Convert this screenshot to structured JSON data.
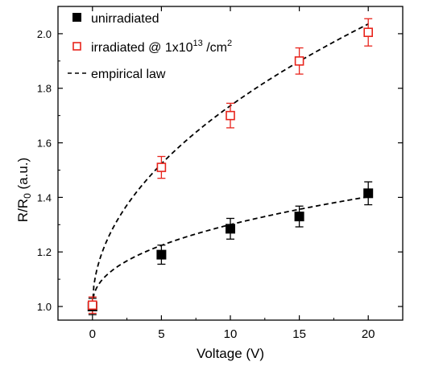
{
  "chart_data": {
    "type": "scatter",
    "xlabel": "Voltage (V)",
    "ylabel": {
      "main": "R/R",
      "sub": "0",
      "suffix": " (a.u.)"
    },
    "xlim": [
      -2.5,
      22.5
    ],
    "ylim": [
      0.95,
      2.1
    ],
    "xticks": [
      0,
      5,
      10,
      15,
      20
    ],
    "yticks": [
      1.0,
      1.2,
      1.4,
      1.6,
      1.8,
      2.0
    ],
    "x_tick_labels": [
      "0",
      "5",
      "10",
      "15",
      "20"
    ],
    "y_tick_labels": [
      "1.0",
      "1.2",
      "1.4",
      "1.6",
      "1.8",
      "2.0"
    ],
    "grid": false,
    "legend_position": "top-left",
    "series": [
      {
        "name": "unirradiated",
        "marker": "filled-square",
        "color": "#000000",
        "x": [
          0,
          5,
          10,
          15,
          20
        ],
        "y": [
          1.0,
          1.19,
          1.285,
          1.33,
          1.415
        ],
        "error": [
          0.03,
          0.035,
          0.038,
          0.038,
          0.042
        ]
      },
      {
        "name": "irradiated",
        "legend_label": {
          "prefix": "irradiated @ 1x10",
          "sup": "13",
          "mid": " /cm",
          "sup2": "2"
        },
        "marker": "open-square",
        "color": "#e8241c",
        "x": [
          0,
          5,
          10,
          15,
          20
        ],
        "y": [
          1.005,
          1.51,
          1.7,
          1.9,
          2.005
        ],
        "error": [
          0.03,
          0.04,
          0.045,
          0.048,
          0.05
        ]
      },
      {
        "name": "empirical law",
        "style": "dashed-line",
        "color": "#000000",
        "curves": [
          {
            "fits": "unirradiated",
            "a": 1.0,
            "b": 0.1136,
            "power": 0.422
          },
          {
            "fits": "irradiated",
            "a": 1.0,
            "b": 0.2365,
            "power": 0.493
          }
        ]
      }
    ]
  }
}
